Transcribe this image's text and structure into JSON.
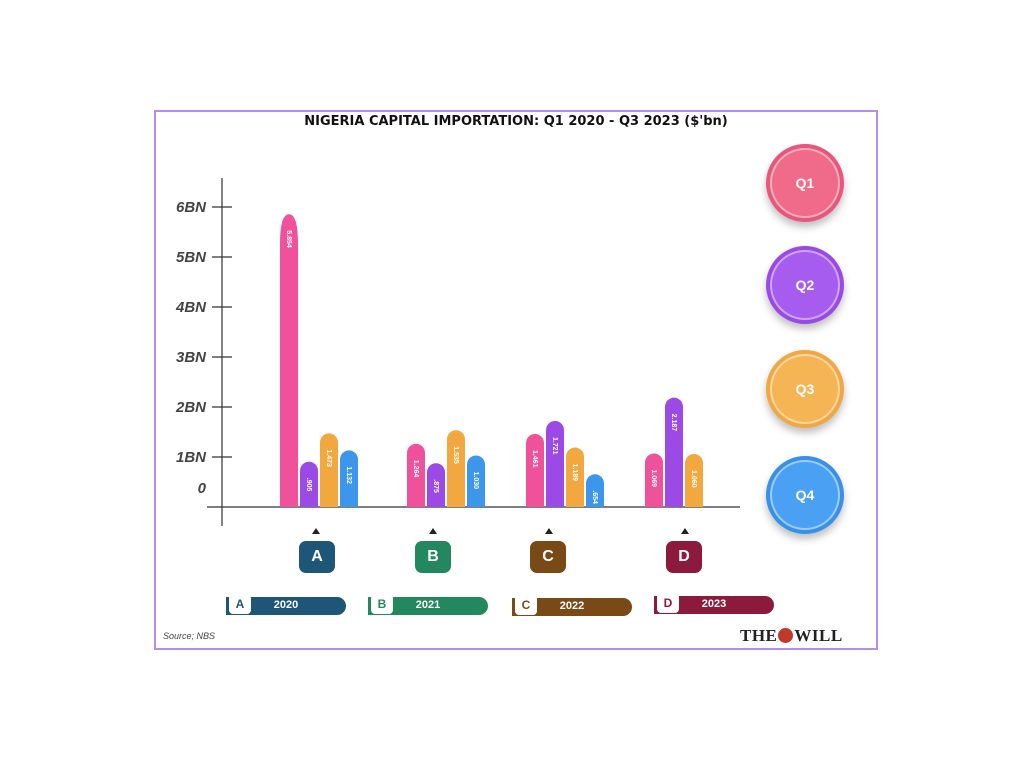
{
  "chart_data": {
    "type": "bar",
    "title": "NIGERIA CAPITAL IMPORTATION: Q1 2020 - Q3 2023 ($'bn)",
    "ytick_labels": [
      "0",
      "1BN",
      "2BN",
      "3BN",
      "4BN",
      "5BN",
      "6BN"
    ],
    "ylim": [
      0,
      6
    ],
    "categories": [
      "A",
      "B",
      "C",
      "D"
    ],
    "series": [
      {
        "name": "Q1",
        "color": "#f0519b",
        "values": [
          5.854,
          1.264,
          1.461,
          1.069
        ],
        "labels": [
          "5.854",
          "1.264",
          "1.461",
          "1.069"
        ]
      },
      {
        "name": "Q2",
        "color": "#9b4ae6",
        "values": [
          0.905,
          0.875,
          1.721,
          2.187
        ],
        "labels": [
          ".905",
          ".875",
          "1.721",
          "2.187"
        ]
      },
      {
        "name": "Q3",
        "color": "#f3a83f",
        "values": [
          1.473,
          1.535,
          1.189,
          1.06
        ],
        "labels": [
          "1.473",
          "1.535",
          "1.189",
          "1.060"
        ]
      },
      {
        "name": "Q4",
        "color": "#3c97ec",
        "values": [
          1.132,
          1.03,
          0.654,
          null
        ],
        "labels": [
          "1.132",
          "1.030",
          ".654",
          ""
        ]
      }
    ],
    "group_legend": [
      {
        "letter": "A",
        "year": "2020",
        "color": "#1d5676"
      },
      {
        "letter": "B",
        "year": "2021",
        "color": "#23875f"
      },
      {
        "letter": "C",
        "year": "2022",
        "color": "#7a4a16"
      },
      {
        "letter": "D",
        "year": "2023",
        "color": "#8b1a3c"
      }
    ],
    "legend_placement": "right",
    "grid": false
  },
  "source": "Source; NBS",
  "logo": {
    "left": "THE",
    "right": "WILL"
  }
}
